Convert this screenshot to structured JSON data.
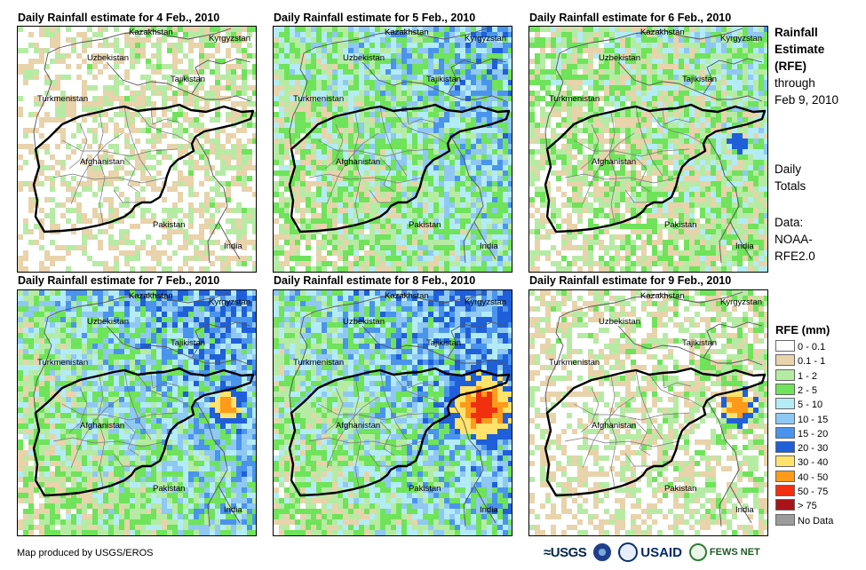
{
  "panels": [
    {
      "title": "Daily Rainfall estimate for 4 Feb., 2010",
      "intensity": 0.25,
      "seed": 11,
      "hotspot": 0.0
    },
    {
      "title": "Daily Rainfall estimate for 5 Feb., 2010",
      "intensity": 0.75,
      "seed": 23,
      "hotspot": 0.0
    },
    {
      "title": "Daily Rainfall estimate for 6 Feb., 2010",
      "intensity": 0.55,
      "seed": 37,
      "hotspot": 0.1
    },
    {
      "title": "Daily Rainfall estimate for 7 Feb., 2010",
      "intensity": 0.85,
      "seed": 41,
      "hotspot": 0.35
    },
    {
      "title": "Daily Rainfall estimate for 8 Feb., 2010",
      "intensity": 0.9,
      "seed": 53,
      "hotspot": 1.0
    },
    {
      "title": "Daily Rainfall estimate for 9 Feb., 2010",
      "intensity": 0.3,
      "seed": 67,
      "hotspot": 0.4
    }
  ],
  "map_labels": {
    "kazakhstan": "Kazakhstan",
    "kyrgyzstan": "Kyrgyzstan",
    "uzbekistan": "Uzbekistan",
    "tajikistan": "Tajikistan",
    "turkmenistan": "Turkmenistan",
    "afghanistan": "Afghanistan",
    "pakistan": "Pakistan",
    "india": "India"
  },
  "side_text": {
    "title_line1": "Rainfall",
    "title_line2": "Estimate",
    "title_line3": "(RFE)",
    "through": "through",
    "date": "Feb 9, 2010",
    "daily1": "Daily",
    "daily2": "Totals",
    "data_label": "Data:",
    "source1": "NOAA-",
    "source2": "RFE2.0"
  },
  "legend": {
    "title": "RFE (mm)",
    "items": [
      {
        "label": "0 - 0.1",
        "color": "#ffffff"
      },
      {
        "label": "0.1 - 1",
        "color": "#e8d3ab"
      },
      {
        "label": "1 - 2",
        "color": "#b6eba4"
      },
      {
        "label": "2 - 5",
        "color": "#6fe35a"
      },
      {
        "label": "5 - 10",
        "color": "#b3ecf5"
      },
      {
        "label": "10 - 15",
        "color": "#8fc8f3"
      },
      {
        "label": "15 - 20",
        "color": "#4a94ec"
      },
      {
        "label": "20 - 30",
        "color": "#1f5fd9"
      },
      {
        "label": "30 - 40",
        "color": "#ffe36a"
      },
      {
        "label": "40 - 50",
        "color": "#ff9a1a"
      },
      {
        "label": "50 - 75",
        "color": "#f0300f"
      },
      {
        "label": "> 75",
        "color": "#a8141a"
      },
      {
        "label": "No Data",
        "color": "#9c9c9c"
      }
    ]
  },
  "credit": "Map produced by USGS/EROS",
  "logos": {
    "usgs": "USGS",
    "usaid": "USAID",
    "fews": "FEWS NET"
  }
}
